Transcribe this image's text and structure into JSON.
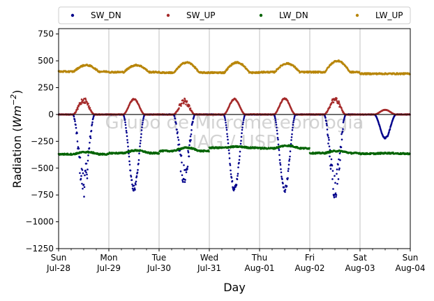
{
  "chart_data": {
    "type": "scatter",
    "title": "",
    "xlabel": "Day",
    "ylabel_main": "Radiation (",
    "ylabel_unit_italic": "Wm",
    "ylabel_exp": "−2",
    "ylabel_close": ")",
    "ylim": [
      -1250,
      800
    ],
    "xlim_days": [
      0,
      7
    ],
    "x_ticks": [
      {
        "day": 0,
        "line1": "Sun",
        "line2": "Jul-28"
      },
      {
        "day": 1,
        "line1": "Mon",
        "line2": "Jul-29"
      },
      {
        "day": 2,
        "line1": "Tue",
        "line2": "Jul-30"
      },
      {
        "day": 3,
        "line1": "Wed",
        "line2": "Jul-31"
      },
      {
        "day": 4,
        "line1": "Thu",
        "line2": "Aug-01"
      },
      {
        "day": 5,
        "line1": "Fri",
        "line2": "Aug-02"
      },
      {
        "day": 6,
        "line1": "Sat",
        "line2": "Aug-03"
      },
      {
        "day": 7,
        "line1": "Sun",
        "line2": "Aug-04"
      }
    ],
    "y_ticks": [
      750,
      500,
      250,
      0,
      -250,
      -500,
      -750,
      -1000,
      -1250
    ],
    "y_tick_labels": [
      "750",
      "500",
      "250",
      "0",
      "−250",
      "−500",
      "−750",
      "−1000",
      "−1250"
    ],
    "grid": "vertical at major x ticks",
    "zero_line": true,
    "legend_placement": "top, above plot",
    "watermark_line1": "Grupo de Micrometeorologia",
    "watermark_line2": "IAG / USP",
    "series": [
      {
        "name": "SW_DN",
        "color": "#00008b",
        "daily_peak": [
          -770,
          -720,
          -690,
          -720,
          -730,
          -790,
          -230
        ],
        "baseline": 0
      },
      {
        "name": "SW_UP",
        "color": "#a52a2a",
        "daily_peak": [
          165,
          150,
          150,
          150,
          155,
          170,
          45
        ],
        "baseline": 0
      },
      {
        "name": "LW_DN",
        "color": "#006400",
        "daily_baseline": [
          -370,
          -360,
          -340,
          -310,
          -315,
          -360,
          -365
        ],
        "daily_bump": [
          20,
          25,
          30,
          10,
          25,
          20,
          5
        ]
      },
      {
        "name": "LW_UP",
        "color": "#b8860b",
        "daily_baseline": [
          400,
          395,
          390,
          390,
          395,
          395,
          380
        ],
        "daily_bump": [
          60,
          65,
          95,
          95,
          80,
          105,
          0
        ]
      }
    ]
  }
}
